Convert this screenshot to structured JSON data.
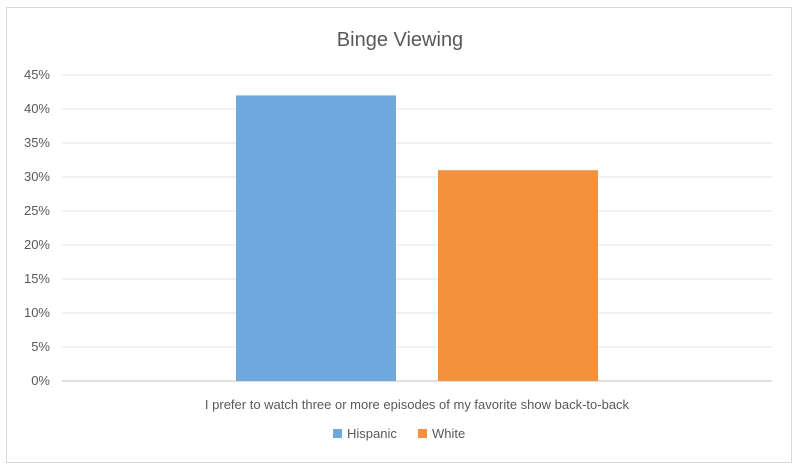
{
  "chart_data": {
    "type": "bar",
    "title": "Binge Viewing",
    "categories": [
      "I prefer to watch three or more episodes of my favorite show back-to-back"
    ],
    "series": [
      {
        "name": "Hispanic",
        "values": [
          42
        ],
        "color": "#6fa8dc"
      },
      {
        "name": "White",
        "values": [
          31
        ],
        "color": "#f4913d"
      }
    ],
    "yticks": [
      "0%",
      "5%",
      "10%",
      "15%",
      "20%",
      "25%",
      "30%",
      "35%",
      "40%",
      "45%"
    ],
    "ylim": [
      0,
      45
    ],
    "grid": true,
    "legend_position": "bottom"
  }
}
